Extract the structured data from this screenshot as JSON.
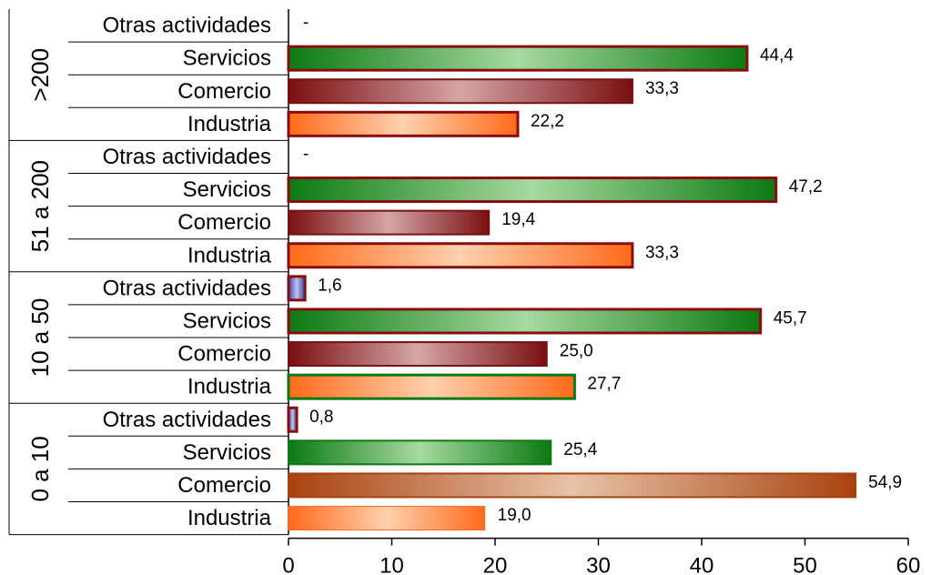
{
  "chart_data": {
    "type": "bar",
    "orientation": "horizontal",
    "xlim": [
      0,
      60
    ],
    "x_ticks": [
      "0",
      "10",
      "20",
      "30",
      "40",
      "50",
      "60"
    ],
    "grid": false,
    "groups": [
      {
        "label": ">200",
        "bars": [
          {
            "category": "Otras actividades",
            "value": 0,
            "label": "-",
            "style": "otras"
          },
          {
            "category": "Servicios",
            "value": 44.4,
            "label": "44,4",
            "style": "servicios"
          },
          {
            "category": "Comercio",
            "value": 33.3,
            "label": "33,3",
            "style": "comercio"
          },
          {
            "category": "Industria",
            "value": 22.2,
            "label": "22,2",
            "style": "industria"
          }
        ]
      },
      {
        "label": "51 a 200",
        "bars": [
          {
            "category": "Otras actividades",
            "value": 0,
            "label": "-",
            "style": "otras"
          },
          {
            "category": "Servicios",
            "value": 47.2,
            "label": "47,2",
            "style": "servicios"
          },
          {
            "category": "Comercio",
            "value": 19.4,
            "label": "19,4",
            "style": "comercio"
          },
          {
            "category": "Industria",
            "value": 33.3,
            "label": "33,3",
            "style": "industria"
          }
        ]
      },
      {
        "label": "10 a 50",
        "bars": [
          {
            "category": "Otras actividades",
            "value": 1.6,
            "label": "1,6",
            "style": "otras"
          },
          {
            "category": "Servicios",
            "value": 45.7,
            "label": "45,7",
            "style": "servicios"
          },
          {
            "category": "Comercio",
            "value": 25.0,
            "label": "25,0",
            "style": "comercio"
          },
          {
            "category": "Industria",
            "value": 27.7,
            "label": "27,7",
            "style": "industria-green"
          }
        ]
      },
      {
        "label": "0 a 10",
        "bars": [
          {
            "category": "Otras actividades",
            "value": 0.8,
            "label": "0,8",
            "style": "otras"
          },
          {
            "category": "Servicios",
            "value": 25.4,
            "label": "25,4",
            "style": "servicios-green"
          },
          {
            "category": "Comercio",
            "value": 54.9,
            "label": "54,9",
            "style": "comercio-brown"
          },
          {
            "category": "Industria",
            "value": 19.0,
            "label": "19,0",
            "style": "industria-plain"
          }
        ]
      }
    ],
    "colors": {
      "servicios_dark": "#0c7a12",
      "servicios_light": "#a6d9a0",
      "comercio_dark": "#7a0f12",
      "comercio_light": "#d5a5a5",
      "comercio_brown_dark": "#a8420f",
      "comercio_brown_light": "#e7c3a8",
      "industria_dark": "#ff6a1a",
      "industria_light": "#ffd0ae",
      "otras_dark": "#3a3d9c",
      "otras_light": "#c0c4ee",
      "border_red": "#8a0d0d"
    }
  }
}
